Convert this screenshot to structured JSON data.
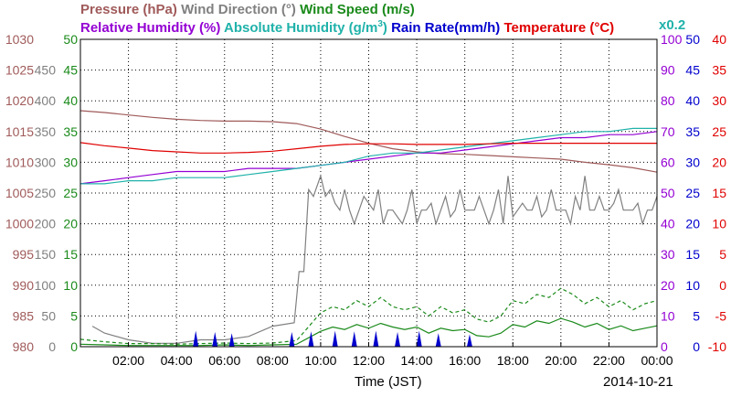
{
  "chart_data": {
    "type": "line",
    "date": "2014-10-21",
    "xlabel": "Time (JST)",
    "x_ticks": [
      "02:00",
      "04:00",
      "06:00",
      "08:00",
      "10:00",
      "12:00",
      "14:00",
      "16:00",
      "18:00",
      "20:00",
      "22:00",
      "00:00"
    ],
    "xlim_hours": [
      0,
      24
    ],
    "grid": true,
    "title_row1": {
      "pressure": "Pressure (hPa)",
      "wind_direction": "Wind Direction (°)",
      "wind_speed": "Wind Speed (m/s)"
    },
    "title_row2": {
      "relative_humidity": "Relative Humidity (%)",
      "absolute_humidity": "Absolute Humidity (g/m",
      "absolute_humidity_sup": "3",
      "absolute_humidity_close": ")",
      "rain_rate": "Rain Rate(mm/h)",
      "temperature": "Temperature (°C)",
      "scale_note": "x0.2"
    },
    "axes": {
      "pressure": {
        "ticks": [
          "1030",
          "1025",
          "1020",
          "1015",
          "1010",
          "1005",
          "1000",
          "995",
          "990",
          "985",
          "980"
        ],
        "range": [
          980,
          1030
        ],
        "color": "#a05a5a"
      },
      "wind_direction": {
        "ticks": [
          "450",
          "400",
          "350",
          "300",
          "250",
          "200",
          "150",
          "100",
          "50",
          "0"
        ],
        "range": [
          0,
          450
        ],
        "color": "#808080"
      },
      "wind_speed": {
        "ticks": [
          "50",
          "45",
          "40",
          "35",
          "30",
          "25",
          "20",
          "15",
          "10",
          "5",
          "0"
        ],
        "range": [
          0,
          50
        ],
        "color": "#1a8a1a"
      },
      "relative_humidity": {
        "ticks": [
          "100",
          "90",
          "80",
          "70",
          "60",
          "50",
          "40",
          "30",
          "20",
          "10",
          "0"
        ],
        "range": [
          0,
          100
        ],
        "color": "#9400d3"
      },
      "rain_rate": {
        "ticks": [
          "50",
          "45",
          "40",
          "35",
          "30",
          "25",
          "20",
          "15",
          "10",
          "5",
          "0"
        ],
        "range": [
          0,
          50
        ],
        "color": "#0000cd"
      },
      "temperature": {
        "ticks": [
          "40",
          "35",
          "30",
          "25",
          "20",
          "15",
          "10",
          "5",
          "0",
          "-5",
          "-10"
        ],
        "range": [
          -10,
          40
        ],
        "color": "#e00000"
      }
    },
    "series": [
      {
        "name": "Pressure (hPa)",
        "axis": "pressure",
        "color": "#a05a5a",
        "x": [
          0,
          1,
          2,
          3,
          4,
          5,
          6,
          7,
          8,
          9,
          10,
          11,
          12,
          13,
          14,
          15,
          16,
          17,
          18,
          19,
          20,
          21,
          22,
          23,
          24
        ],
        "values": [
          1018.4,
          1018.1,
          1017.7,
          1017.3,
          1017.0,
          1016.8,
          1016.7,
          1016.7,
          1016.6,
          1016.3,
          1015.4,
          1014.2,
          1013.1,
          1012.2,
          1011.7,
          1011.4,
          1011.3,
          1011.1,
          1010.9,
          1010.7,
          1010.5,
          1010.0,
          1009.6,
          1009.1,
          1008.4
        ]
      },
      {
        "name": "Wind Direction (°)",
        "axis": "wind_direction",
        "color": "#808080",
        "x": [
          0.5,
          1,
          2,
          3,
          4,
          5,
          6,
          7,
          8,
          8.9,
          9.1,
          9.3,
          9.5,
          9.7,
          10,
          10.2,
          10.4,
          10.6,
          10.8,
          11,
          11.2,
          11.4,
          11.6,
          11.8,
          12,
          12.2,
          12.4,
          12.6,
          12.8,
          13,
          13.2,
          13.4,
          13.6,
          13.8,
          14,
          14.2,
          14.4,
          14.6,
          14.8,
          15,
          15.2,
          15.4,
          15.6,
          15.8,
          16,
          16.2,
          16.4,
          16.6,
          16.8,
          17,
          17.2,
          17.4,
          17.6,
          17.8,
          18,
          18.2,
          18.4,
          18.6,
          18.8,
          19,
          19.2,
          19.4,
          19.6,
          19.8,
          20,
          20.2,
          20.4,
          20.6,
          20.8,
          21,
          21.2,
          21.4,
          21.6,
          21.8,
          22,
          22.2,
          22.4,
          22.6,
          22.8,
          23,
          23.2,
          23.4,
          23.6,
          23.8,
          24
        ],
        "values": [
          30,
          20,
          10,
          5,
          5,
          10,
          10,
          15,
          30,
          35,
          110,
          110,
          230,
          220,
          250,
          220,
          230,
          210,
          200,
          230,
          200,
          180,
          200,
          220,
          210,
          200,
          230,
          180,
          200,
          200,
          190,
          180,
          200,
          230,
          180,
          200,
          200,
          210,
          180,
          200,
          220,
          190,
          200,
          230,
          200,
          200,
          200,
          220,
          200,
          180,
          200,
          230,
          180,
          250,
          190,
          200,
          210,
          200,
          200,
          220,
          190,
          200,
          230,
          200,
          200,
          200,
          180,
          220,
          200,
          250,
          200,
          200,
          220,
          200,
          200,
          210,
          230,
          200,
          200,
          200,
          210,
          180,
          200,
          200,
          220
        ]
      },
      {
        "name": "Wind Speed (m/s) max",
        "axis": "wind_speed",
        "color": "#1a8a1a",
        "dash": true,
        "x": [
          0,
          1,
          2,
          3,
          4,
          5,
          6,
          7,
          8,
          9,
          10,
          10.5,
          11,
          11.5,
          12,
          12.5,
          13,
          13.5,
          14,
          14.5,
          15,
          15.5,
          16,
          16.5,
          17,
          17.5,
          18,
          18.5,
          19,
          19.5,
          20,
          20.5,
          21,
          21.5,
          22,
          22.5,
          23,
          23.5,
          24
        ],
        "values": [
          1.2,
          0.8,
          0.5,
          0.5,
          0.4,
          0.5,
          0.6,
          0.5,
          0.6,
          1.0,
          5.5,
          6.5,
          6.0,
          7.5,
          6.5,
          8.0,
          6.5,
          6.0,
          6.5,
          5.0,
          6.5,
          5.5,
          6.0,
          4.5,
          4.0,
          5.0,
          7.5,
          7.0,
          8.5,
          8.0,
          9.5,
          8.5,
          7.0,
          8.0,
          6.5,
          7.5,
          6.0,
          7.0,
          7.5
        ]
      },
      {
        "name": "Wind Speed (m/s) mean",
        "axis": "wind_speed",
        "color": "#1a8a1a",
        "x": [
          0,
          1,
          2,
          3,
          4,
          5,
          6,
          7,
          8,
          9,
          10,
          10.5,
          11,
          11.5,
          12,
          12.5,
          13,
          13.5,
          14,
          14.5,
          15,
          15.5,
          16,
          16.5,
          17,
          17.5,
          18,
          18.5,
          19,
          19.5,
          20,
          20.5,
          21,
          21.5,
          22,
          22.5,
          23,
          23.5,
          24
        ],
        "values": [
          0.4,
          0.3,
          0.2,
          0.2,
          0.2,
          0.2,
          0.3,
          0.2,
          0.3,
          0.4,
          2.5,
          3.2,
          2.8,
          3.6,
          3.0,
          3.8,
          3.2,
          2.8,
          3.2,
          2.2,
          3.0,
          2.6,
          2.8,
          1.8,
          1.6,
          2.2,
          3.6,
          3.2,
          4.2,
          3.8,
          4.6,
          4.0,
          3.2,
          3.8,
          2.8,
          3.4,
          2.6,
          3.0,
          3.4
        ]
      },
      {
        "name": "Relative Humidity (%)",
        "axis": "relative_humidity",
        "color": "#9400d3",
        "x": [
          0,
          1,
          2,
          3,
          4,
          5,
          6,
          7,
          8,
          9,
          10,
          11,
          12,
          13,
          14,
          15,
          16,
          17,
          18,
          19,
          20,
          21,
          22,
          23,
          24
        ],
        "values": [
          53,
          54,
          55,
          56,
          57,
          57,
          57,
          58,
          58,
          58,
          59,
          60,
          61,
          62,
          63,
          63,
          64,
          65,
          66,
          67,
          68,
          68,
          69,
          69,
          70
        ]
      },
      {
        "name": "Absolute Humidity (g/m3)",
        "axis": "relative_humidity",
        "color": "#20b2aa",
        "x": [
          0,
          1,
          2,
          3,
          4,
          5,
          6,
          7,
          8,
          9,
          10,
          11,
          12,
          13,
          14,
          15,
          16,
          17,
          18,
          19,
          20,
          21,
          22,
          23,
          24
        ],
        "values": [
          53,
          53,
          54,
          54,
          55,
          55,
          55,
          56,
          57,
          58,
          59,
          60,
          62,
          63,
          63,
          64,
          65,
          66,
          67,
          68,
          69,
          70,
          70,
          71,
          71
        ]
      },
      {
        "name": "Temperature (°C)",
        "axis": "temperature",
        "color": "#e00000",
        "x": [
          0,
          1,
          2,
          3,
          4,
          5,
          6,
          7,
          8,
          9,
          10,
          11,
          12,
          13,
          14,
          15,
          16,
          17,
          18,
          19,
          20,
          21,
          22,
          23,
          24
        ],
        "values": [
          23.2,
          22.7,
          22.3,
          21.9,
          21.7,
          21.5,
          21.5,
          21.6,
          21.8,
          22.2,
          22.6,
          22.9,
          23.0,
          23.0,
          22.9,
          22.9,
          22.9,
          23.0,
          23.1,
          23.1,
          23.1,
          23.1,
          23.1,
          23.1,
          23.1
        ]
      },
      {
        "name": "Rain Rate(mm/h)",
        "axis": "rain_rate",
        "color": "#0000cd",
        "spikes": true,
        "x": [
          4.8,
          5.6,
          6.3,
          8.8,
          9.6,
          10.6,
          11.4,
          12.3,
          13.2,
          14.1,
          14.9,
          16.2
        ],
        "values": [
          2.6,
          2.4,
          2.2,
          2.4,
          2.5,
          2.6,
          2.5,
          2.6,
          2.4,
          2.6,
          2.2,
          2.0
        ]
      }
    ]
  }
}
